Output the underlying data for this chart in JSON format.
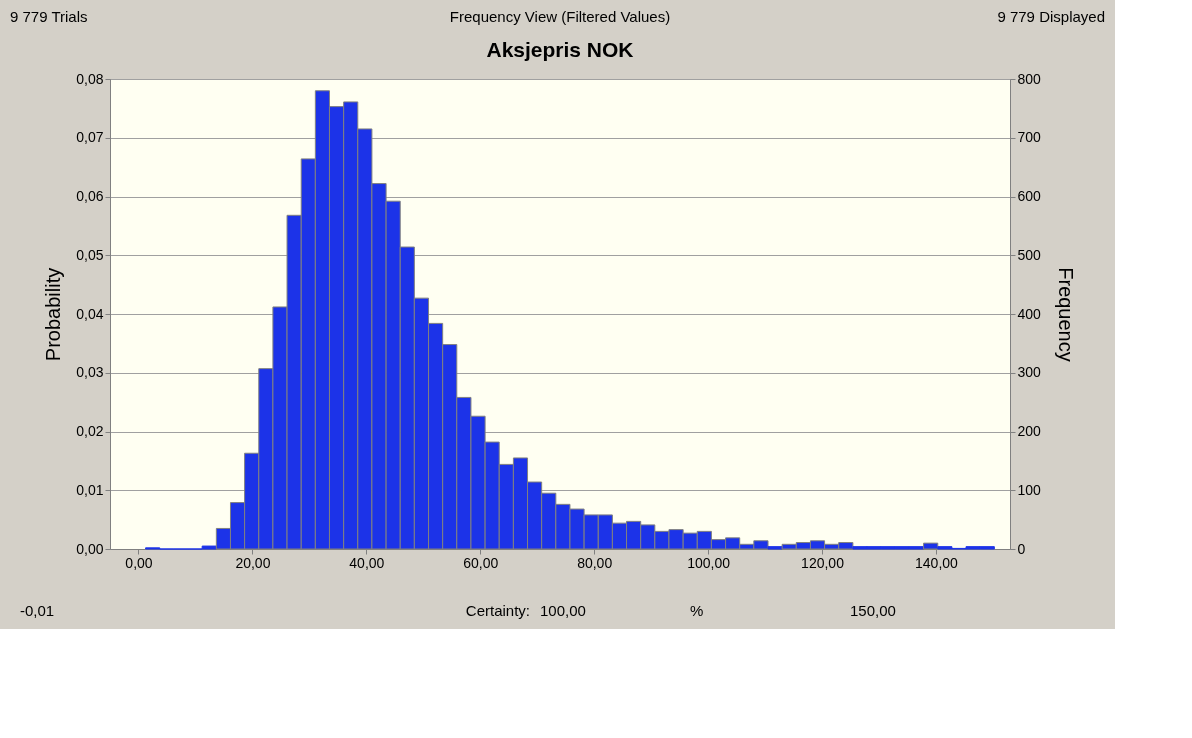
{
  "chart_data": {
    "type": "histogram",
    "title": "Aksjepris NOK",
    "ylabel": "Probability",
    "y2label": "Frequency",
    "annotations": [
      "9 779 Trials",
      "Frequency View (Filtered Values)",
      "9 779 Displayed",
      "-0,01",
      "Certainty:",
      "100,00",
      "%",
      "150,00"
    ],
    "bins": [
      1.25,
      3.73,
      6.22,
      8.7,
      11.18,
      13.67,
      16.15,
      18.63,
      21.12,
      23.6,
      26.08,
      28.57,
      31.05,
      33.53,
      36.02,
      38.5,
      40.98,
      43.47,
      45.95,
      48.43,
      50.92,
      53.4,
      55.88,
      58.37,
      60.85,
      63.33,
      65.82,
      68.3,
      70.78,
      73.27,
      75.75,
      78.23,
      80.72,
      83.2,
      85.68,
      88.17,
      90.65,
      93.13,
      95.62,
      98.1,
      100.58,
      103.07,
      105.55,
      108.03,
      110.52,
      113.0,
      115.48,
      117.97,
      120.45,
      122.93,
      125.42,
      127.9,
      130.38,
      132.87,
      135.35,
      137.83,
      140.32,
      142.8,
      145.28,
      147.77,
      150.25
    ],
    "values": [
      0.0002,
      0,
      0,
      0,
      0.0005,
      0.0035,
      0.0079,
      0.0163,
      0.0307,
      0.0412,
      0.0568,
      0.0664,
      0.078,
      0.0753,
      0.0761,
      0.0715,
      0.0622,
      0.0592,
      0.0514,
      0.0427,
      0.0384,
      0.0348,
      0.0258,
      0.0226,
      0.0182,
      0.0144,
      0.0155,
      0.0114,
      0.0095,
      0.0076,
      0.0068,
      0.0058,
      0.0058,
      0.0044,
      0.0047,
      0.0041,
      0.003,
      0.0033,
      0.0027,
      0.003,
      0.0016,
      0.0019,
      0.0008,
      0.0014,
      0.0004,
      0.0008,
      0.0011,
      0.0014,
      0.0008,
      0.0011,
      0.0004,
      0.0004,
      0.0004,
      0.0004,
      0.0004,
      0.001,
      0.0004,
      0.0001,
      0.0004,
      0.0004
    ],
    "color": "#1c33e8",
    "xlim": [
      -5,
      153
    ],
    "xticks": [
      {
        "value": 0,
        "label": "0,00"
      },
      {
        "value": 20,
        "label": "20,00"
      },
      {
        "value": 40,
        "label": "40,00"
      },
      {
        "value": 60,
        "label": "60,00"
      },
      {
        "value": 80,
        "label": "80,00"
      },
      {
        "value": 100,
        "label": "100,00"
      },
      {
        "value": 120,
        "label": "120,00"
      },
      {
        "value": 140,
        "label": "140,00"
      }
    ],
    "ylim": [
      0,
      0.08
    ],
    "yticks": [
      {
        "value": 0,
        "label": "0,00"
      },
      {
        "value": 0.01,
        "label": "0,01"
      },
      {
        "value": 0.02,
        "label": "0,02"
      },
      {
        "value": 0.03,
        "label": "0,03"
      },
      {
        "value": 0.04,
        "label": "0,04"
      },
      {
        "value": 0.05,
        "label": "0,05"
      },
      {
        "value": 0.06,
        "label": "0,06"
      },
      {
        "value": 0.07,
        "label": "0,07"
      },
      {
        "value": 0.08,
        "label": "0,08"
      }
    ],
    "y2lim": [
      0,
      800
    ],
    "y2ticks": [
      0,
      100,
      200,
      300,
      400,
      500,
      600,
      700,
      800
    ],
    "grid": "y"
  }
}
